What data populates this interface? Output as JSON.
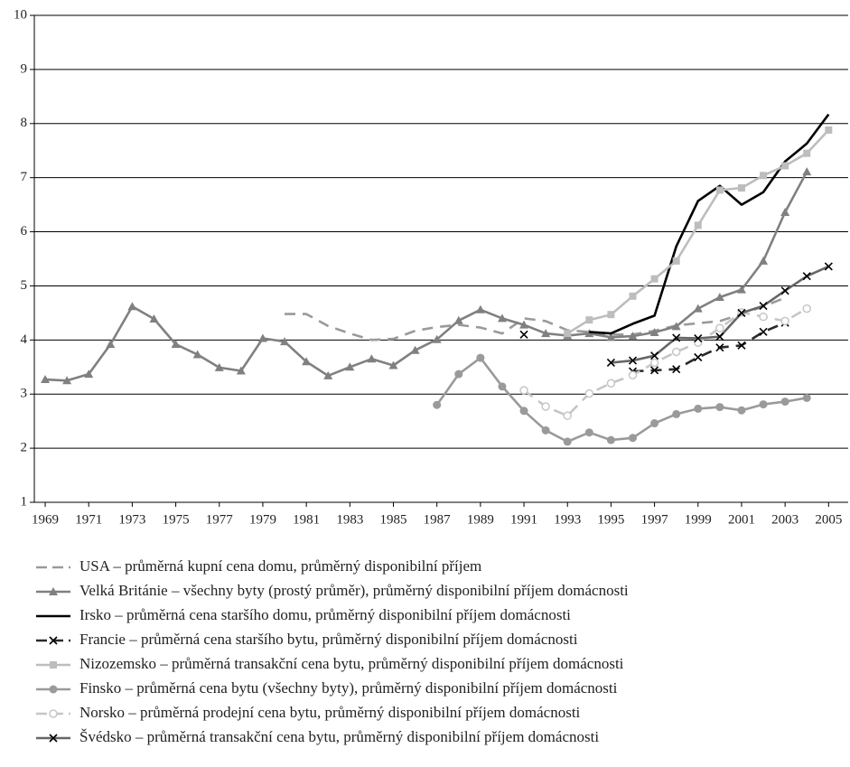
{
  "chart_data": {
    "type": "line",
    "x": [
      1969,
      1970,
      1971,
      1972,
      1973,
      1974,
      1975,
      1976,
      1977,
      1978,
      1979,
      1980,
      1981,
      1982,
      1983,
      1984,
      1985,
      1986,
      1987,
      1988,
      1989,
      1990,
      1991,
      1992,
      1993,
      1994,
      1995,
      1996,
      1997,
      1998,
      1999,
      2000,
      2001,
      2002,
      2003,
      2004,
      2005
    ],
    "xlim": [
      1968.5,
      2005.9
    ],
    "xticks": [
      1969,
      1971,
      1973,
      1975,
      1977,
      1979,
      1981,
      1983,
      1985,
      1987,
      1989,
      1991,
      1993,
      1995,
      1997,
      1999,
      2001,
      2003,
      2005
    ],
    "ylim": [
      1,
      10
    ],
    "yticks": [
      1,
      2,
      3,
      4,
      5,
      6,
      7,
      8,
      9,
      10
    ],
    "grid": true,
    "series": [
      {
        "name": "USA – průměrná kupní cena domu, průměrný disponibilní příjem",
        "color": "#9a9a9a",
        "dashed": true,
        "marker": "none",
        "values": [
          null,
          null,
          null,
          null,
          null,
          null,
          null,
          null,
          null,
          null,
          null,
          4.48,
          4.48,
          4.26,
          4.12,
          4.0,
          4.02,
          4.17,
          4.24,
          4.28,
          4.23,
          4.12,
          4.4,
          4.35,
          4.18,
          4.15,
          4.1,
          4.1,
          4.17,
          4.27,
          4.31,
          4.35,
          4.48,
          4.62,
          4.78,
          null,
          null
        ]
      },
      {
        "name": "Velká Británie – všechny byty (prostý průměr), průměrný disponibilní příjem domácnosti",
        "color": "#808080",
        "dashed": false,
        "marker": "triangle",
        "values": [
          3.27,
          3.25,
          3.37,
          3.92,
          4.62,
          4.39,
          3.92,
          3.73,
          3.49,
          3.43,
          4.03,
          3.97,
          3.6,
          3.34,
          3.5,
          3.65,
          3.53,
          3.81,
          4.01,
          4.36,
          4.56,
          4.4,
          4.28,
          4.12,
          4.08,
          4.12,
          4.05,
          4.07,
          4.14,
          4.25,
          4.58,
          4.79,
          4.93,
          5.46,
          6.36,
          7.11,
          null
        ]
      },
      {
        "name": "Irsko – průměrná cena staršího domu, průměrný disponibilní příjem domácnosti",
        "color": "#000000",
        "dashed": false,
        "marker": "none",
        "values": [
          null,
          null,
          null,
          null,
          null,
          null,
          null,
          null,
          null,
          null,
          null,
          null,
          null,
          null,
          null,
          null,
          null,
          null,
          null,
          null,
          null,
          null,
          null,
          null,
          null,
          4.15,
          4.12,
          4.3,
          4.45,
          5.73,
          6.57,
          6.85,
          6.5,
          6.73,
          7.3,
          7.63,
          8.17
        ]
      },
      {
        "name": "Francie – průměrná cena staršího bytu, průměrný disponibilní příjem domácnosti",
        "color": "#2a2a2a",
        "dashed": true,
        "marker": "cross",
        "values": [
          null,
          null,
          null,
          null,
          null,
          null,
          null,
          null,
          null,
          null,
          null,
          null,
          null,
          null,
          null,
          null,
          null,
          null,
          null,
          null,
          null,
          null,
          null,
          null,
          null,
          null,
          null,
          3.42,
          3.44,
          3.46,
          3.68,
          3.86,
          3.9,
          4.15,
          4.32,
          null,
          null
        ]
      },
      {
        "name": "Nizozemsko – průměrná transakční cena bytu, průměrný disponibilní příjem domácnosti",
        "color": "#bdbdbd",
        "dashed": false,
        "marker": "square",
        "values": [
          null,
          null,
          null,
          null,
          null,
          null,
          null,
          null,
          null,
          null,
          null,
          null,
          null,
          null,
          null,
          null,
          null,
          null,
          null,
          null,
          null,
          null,
          null,
          null,
          4.12,
          4.37,
          4.47,
          4.81,
          5.13,
          5.46,
          6.12,
          6.77,
          6.81,
          7.04,
          7.22,
          7.45,
          7.88
        ]
      },
      {
        "name": "Finsko – průměrná cena bytu (všechny byty), průměrný disponibilní příjem domácnosti",
        "color": "#9a9a9a",
        "dashed": false,
        "marker": "circle",
        "values": [
          null,
          null,
          null,
          null,
          null,
          null,
          null,
          null,
          null,
          null,
          null,
          null,
          null,
          null,
          null,
          null,
          null,
          null,
          2.8,
          3.37,
          3.67,
          3.14,
          2.69,
          2.33,
          2.12,
          2.29,
          2.15,
          2.19,
          2.46,
          2.63,
          2.73,
          2.76,
          2.7,
          2.81,
          2.86,
          2.93,
          null
        ]
      },
      {
        "name": "Norsko – průměrná prodejní cena bytu, průměrný disponibilní příjem domácnosti",
        "color": "#c6c6c6",
        "dashed": true,
        "marker": "open-circle",
        "values": [
          null,
          null,
          null,
          null,
          null,
          null,
          null,
          null,
          null,
          null,
          null,
          null,
          null,
          null,
          null,
          null,
          null,
          null,
          null,
          null,
          null,
          null,
          3.07,
          2.77,
          2.6,
          3.01,
          3.2,
          3.35,
          3.58,
          3.78,
          3.95,
          4.22,
          4.51,
          4.43,
          4.35,
          4.58,
          null
        ]
      },
      {
        "name": "Švédsko – průměrná transakční cena bytu, průměrný disponibilní příjem domácnosti",
        "color": "#666666",
        "dashed": false,
        "marker": "cross",
        "values": [
          null,
          null,
          null,
          null,
          null,
          null,
          null,
          null,
          null,
          null,
          null,
          null,
          null,
          null,
          null,
          null,
          null,
          null,
          null,
          null,
          null,
          null,
          4.1,
          null,
          null,
          null,
          3.58,
          3.62,
          3.71,
          4.04,
          4.03,
          4.06,
          4.5,
          4.63,
          4.91,
          5.18,
          5.36
        ]
      }
    ]
  }
}
